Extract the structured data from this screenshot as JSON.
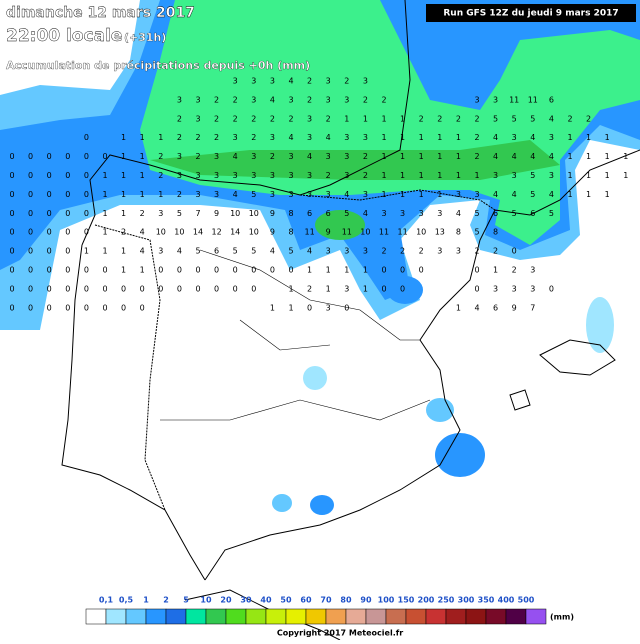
{
  "header": {
    "date": "dimanche 12 mars 2017",
    "time": "22:00 locale",
    "lead": "(+31h)",
    "field": "Accumulation de précipitations depuis +0h (mm)",
    "run": "Run GFS 12Z du jeudi 9 mars 2017"
  },
  "grid_values": [
    [
      null,
      null,
      null,
      null,
      null,
      null,
      null,
      null,
      null,
      null,
      null,
      null,
      3,
      3,
      3,
      4,
      2,
      3,
      2,
      3
    ],
    [
      null,
      null,
      null,
      null,
      null,
      null,
      null,
      null,
      null,
      3,
      3,
      2,
      2,
      3,
      4,
      3,
      2,
      3,
      3,
      2,
      2,
      null,
      null,
      null,
      null,
      3,
      3,
      11,
      11,
      6
    ],
    [
      null,
      null,
      null,
      null,
      null,
      null,
      null,
      null,
      null,
      2,
      3,
      2,
      2,
      2,
      2,
      2,
      3,
      2,
      1,
      1,
      1,
      1,
      2,
      2,
      2,
      2,
      5,
      5,
      5,
      4,
      2,
      2
    ],
    [
      null,
      null,
      null,
      null,
      0,
      null,
      1,
      1,
      1,
      2,
      2,
      2,
      3,
      2,
      3,
      4,
      3,
      4,
      3,
      3,
      1,
      1,
      1,
      1,
      1,
      2,
      4,
      3,
      4,
      3,
      1,
      1,
      1
    ],
    [
      0,
      0,
      0,
      0,
      0,
      0,
      1,
      1,
      2,
      3,
      2,
      3,
      4,
      3,
      2,
      3,
      4,
      3,
      3,
      2,
      1,
      1,
      1,
      1,
      1,
      2,
      4,
      4,
      4,
      4,
      1,
      1,
      1,
      1
    ],
    [
      0,
      0,
      0,
      0,
      0,
      1,
      1,
      1,
      2,
      3,
      3,
      3,
      3,
      3,
      3,
      3,
      3,
      2,
      3,
      2,
      1,
      1,
      1,
      1,
      1,
      1,
      3,
      3,
      5,
      3,
      1,
      1,
      1,
      1
    ],
    [
      0,
      0,
      0,
      0,
      0,
      1,
      1,
      1,
      1,
      2,
      3,
      3,
      4,
      5,
      3,
      3,
      3,
      3,
      4,
      3,
      1,
      1,
      1,
      1,
      3,
      3,
      4,
      4,
      5,
      4,
      1,
      1,
      1
    ],
    [
      0,
      0,
      0,
      0,
      0,
      1,
      1,
      2,
      3,
      5,
      7,
      9,
      10,
      10,
      9,
      8,
      6,
      6,
      5,
      4,
      3,
      3,
      3,
      3,
      4,
      5,
      6,
      5,
      6,
      5
    ],
    [
      0,
      0,
      0,
      0,
      0,
      1,
      2,
      4,
      10,
      10,
      14,
      12,
      14,
      10,
      9,
      8,
      11,
      9,
      11,
      10,
      11,
      11,
      10,
      13,
      8,
      5,
      8
    ],
    [
      0,
      0,
      0,
      0,
      1,
      1,
      1,
      4,
      3,
      4,
      5,
      6,
      5,
      5,
      4,
      5,
      4,
      3,
      3,
      3,
      2,
      2,
      2,
      3,
      3,
      2,
      2,
      0
    ],
    [
      0,
      0,
      0,
      0,
      0,
      0,
      1,
      1,
      0,
      0,
      0,
      0,
      0,
      0,
      0,
      0,
      1,
      1,
      1,
      1,
      0,
      0,
      0,
      null,
      null,
      0,
      1,
      2,
      3
    ],
    [
      0,
      0,
      0,
      0,
      0,
      0,
      0,
      0,
      0,
      0,
      0,
      0,
      0,
      0,
      null,
      1,
      2,
      1,
      3,
      1,
      0,
      0,
      null,
      null,
      null,
      0,
      3,
      3,
      3,
      0
    ],
    [
      0,
      0,
      0,
      0,
      0,
      0,
      0,
      0,
      null,
      null,
      null,
      null,
      null,
      null,
      1,
      1,
      0,
      3,
      0,
      null,
      null,
      null,
      null,
      null,
      1,
      4,
      6,
      9,
      7
    ]
  ],
  "legend": {
    "labels": [
      "0,1",
      "0,5",
      "1",
      "2",
      "5",
      "10",
      "20",
      "30",
      "40",
      "50",
      "60",
      "70",
      "80",
      "90",
      "100",
      "150",
      "200",
      "250",
      "300",
      "350",
      "400",
      "500"
    ],
    "unit": "(mm)",
    "colors": [
      "#ffffff",
      "#a0e6ff",
      "#64c8ff",
      "#2896ff",
      "#1e6ee6",
      "#00e6a0",
      "#32c850",
      "#50dc1e",
      "#96e614",
      "#c8f00a",
      "#e6f000",
      "#f0c800",
      "#f0a050",
      "#e6aa96",
      "#c89696",
      "#c86e50",
      "#c85032",
      "#c83232",
      "#a01e1e",
      "#8c1414",
      "#780a28",
      "#500046",
      "#9650f0"
    ]
  },
  "footer": {
    "copyright": "Copyright 2017 Meteociel.fr"
  }
}
